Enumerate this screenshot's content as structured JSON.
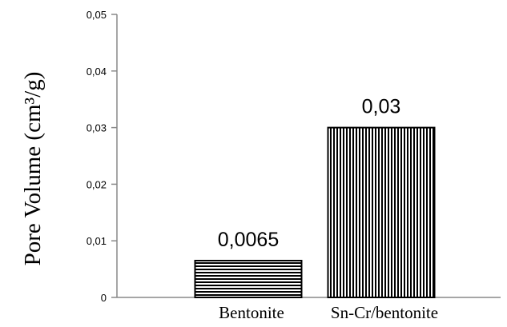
{
  "chart_data": {
    "type": "bar",
    "title": "",
    "xlabel": "",
    "ylabel": "Pore Volume (cm³/g)",
    "ylim": [
      0,
      0.05
    ],
    "yticks": [
      "0",
      "0,01",
      "0,02",
      "0,03",
      "0,04",
      "0,05"
    ],
    "categories": [
      "Bentonite",
      "Sn-Cr/bentonite"
    ],
    "values": [
      0.0065,
      0.03
    ],
    "data_labels": [
      "0,0065",
      "0,03"
    ],
    "patterns": [
      "horizontal-lines",
      "vertical-lines"
    ],
    "grid": false,
    "legend": "none"
  }
}
